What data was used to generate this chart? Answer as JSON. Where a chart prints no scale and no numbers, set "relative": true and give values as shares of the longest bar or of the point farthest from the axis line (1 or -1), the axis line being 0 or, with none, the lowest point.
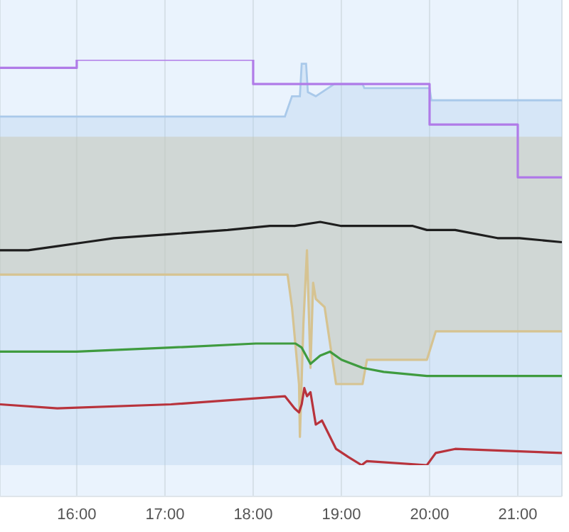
{
  "chart_data": {
    "type": "line",
    "relative": true,
    "grid": "x",
    "legend": false,
    "marker": "none",
    "line_style": "solid",
    "xlim": [
      15.13,
      21.5
    ],
    "xticks": [
      {
        "value": 16,
        "label": "16:00"
      },
      {
        "value": 17,
        "label": "17:00"
      },
      {
        "value": 18,
        "label": "18:00"
      },
      {
        "value": 19,
        "label": "19:00"
      },
      {
        "value": 20,
        "label": "20:00"
      },
      {
        "value": 21,
        "label": "21:00"
      }
    ],
    "series": [
      {
        "type": "area",
        "color": "#a9c9ea",
        "x": [
          15.13,
          16.74,
          18.36,
          18.44,
          18.53,
          18.55,
          18.6,
          18.62,
          18.71,
          18.92,
          19.24,
          19.26,
          20.0,
          20.02,
          21.5
        ],
        "values": [
          0.86,
          0.86,
          0.86,
          0.91,
          0.91,
          0.99,
          0.99,
          0.92,
          0.91,
          0.94,
          0.94,
          0.93,
          0.93,
          0.9,
          0.9
        ]
      },
      {
        "type": "line",
        "color": "#d6c391",
        "x": [
          15.13,
          16.74,
          18.39,
          18.44,
          18.52,
          18.53,
          18.57,
          18.61,
          18.65,
          18.68,
          18.71,
          18.81,
          18.94,
          19.24,
          19.29,
          19.97,
          20.07,
          21.5
        ],
        "values": [
          0.47,
          0.47,
          0.47,
          0.39,
          0.2,
          0.07,
          0.35,
          0.53,
          0.24,
          0.45,
          0.41,
          0.39,
          0.2,
          0.2,
          0.26,
          0.26,
          0.33,
          0.33
        ],
        "lower": [
          0.47,
          0.47,
          0.47,
          0.39,
          0.2,
          0.07,
          0.35,
          0.53,
          0.24,
          0.45,
          0.41,
          0.39,
          0.2,
          0.2,
          0.26,
          0.26,
          0.33,
          0.33
        ],
        "upper": [
          0.81,
          0.81,
          0.81,
          0.81,
          0.81,
          0.81,
          0.81,
          0.81,
          0.81,
          0.81,
          0.81,
          0.81,
          0.81,
          0.81,
          0.81,
          0.81,
          0.81,
          0.81
        ]
      },
      {
        "type": "step",
        "color": "#b07be8",
        "x": [
          15.13,
          16,
          18,
          20,
          21,
          21.5
        ],
        "values": [
          0.98,
          1,
          0.94,
          0.84,
          0.71,
          0.71
        ]
      },
      {
        "type": "line",
        "color": "#1e1e1e",
        "x": [
          15.13,
          15.45,
          15.78,
          16.1,
          16.42,
          17.07,
          17.71,
          18.19,
          18.47,
          18.76,
          19.0,
          19.81,
          19.97,
          20.29,
          20.77,
          21.02,
          21.5
        ],
        "values": [
          0.53,
          0.53,
          0.54,
          0.55,
          0.56,
          0.57,
          0.58,
          0.59,
          0.59,
          0.6,
          0.59,
          0.59,
          0.58,
          0.58,
          0.56,
          0.56,
          0.55
        ]
      },
      {
        "type": "line",
        "color": "#3f9b3f",
        "x": [
          15.13,
          16.0,
          17.07,
          18.03,
          18.48,
          18.55,
          18.65,
          18.76,
          18.87,
          19.0,
          19.24,
          19.48,
          19.97,
          20.07,
          20.29,
          21.5
        ],
        "values": [
          0.28,
          0.28,
          0.29,
          0.3,
          0.3,
          0.29,
          0.25,
          0.27,
          0.28,
          0.26,
          0.24,
          0.23,
          0.22,
          0.22,
          0.22,
          0.22
        ]
      },
      {
        "type": "line",
        "color": "#b8333c",
        "x": [
          15.13,
          15.78,
          17.07,
          17.71,
          18.36,
          18.47,
          18.52,
          18.55,
          18.58,
          18.61,
          18.65,
          18.71,
          18.78,
          18.94,
          19.08,
          19.23,
          19.29,
          19.97,
          20.07,
          20.29,
          21.5
        ],
        "values": [
          0.15,
          0.14,
          0.15,
          0.16,
          0.17,
          0.14,
          0.13,
          0.15,
          0.19,
          0.17,
          0.18,
          0.1,
          0.11,
          0.04,
          0.02,
          0,
          0.01,
          0,
          0.03,
          0.04,
          0.03
        ]
      }
    ]
  }
}
